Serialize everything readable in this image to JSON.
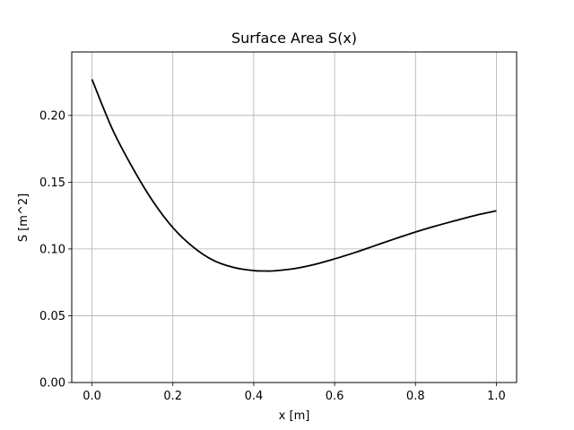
{
  "chart_data": {
    "type": "line",
    "title": "Surface Area S(x)",
    "xlabel": "x [m]",
    "ylabel": "S [m^2]",
    "xlim": [
      -0.05,
      1.05
    ],
    "ylim": [
      0.0,
      0.2475
    ],
    "grid": true,
    "x_ticks": [
      0.0,
      0.2,
      0.4,
      0.6,
      0.8,
      1.0
    ],
    "x_tick_labels": [
      "0.0",
      "0.2",
      "0.4",
      "0.6",
      "0.8",
      "1.0"
    ],
    "y_ticks": [
      0.0,
      0.05,
      0.1,
      0.15,
      0.2
    ],
    "y_tick_labels": [
      "0.00",
      "0.05",
      "0.10",
      "0.15",
      "0.20"
    ],
    "series": [
      {
        "color": "#000000",
        "x": [
          0.0,
          0.05,
          0.1,
          0.15,
          0.2,
          0.25,
          0.3,
          0.35,
          0.4,
          0.43,
          0.45,
          0.5,
          0.55,
          0.6,
          0.65,
          0.7,
          0.75,
          0.8,
          0.85,
          0.9,
          0.95,
          1.0
        ],
        "y": [
          0.227,
          0.19,
          0.161,
          0.136,
          0.116,
          0.1015,
          0.0915,
          0.0862,
          0.0838,
          0.0835,
          0.0836,
          0.0853,
          0.0884,
          0.0926,
          0.0973,
          0.1025,
          0.1077,
          0.1127,
          0.1172,
          0.1213,
          0.1253,
          0.1285
        ]
      }
    ]
  }
}
